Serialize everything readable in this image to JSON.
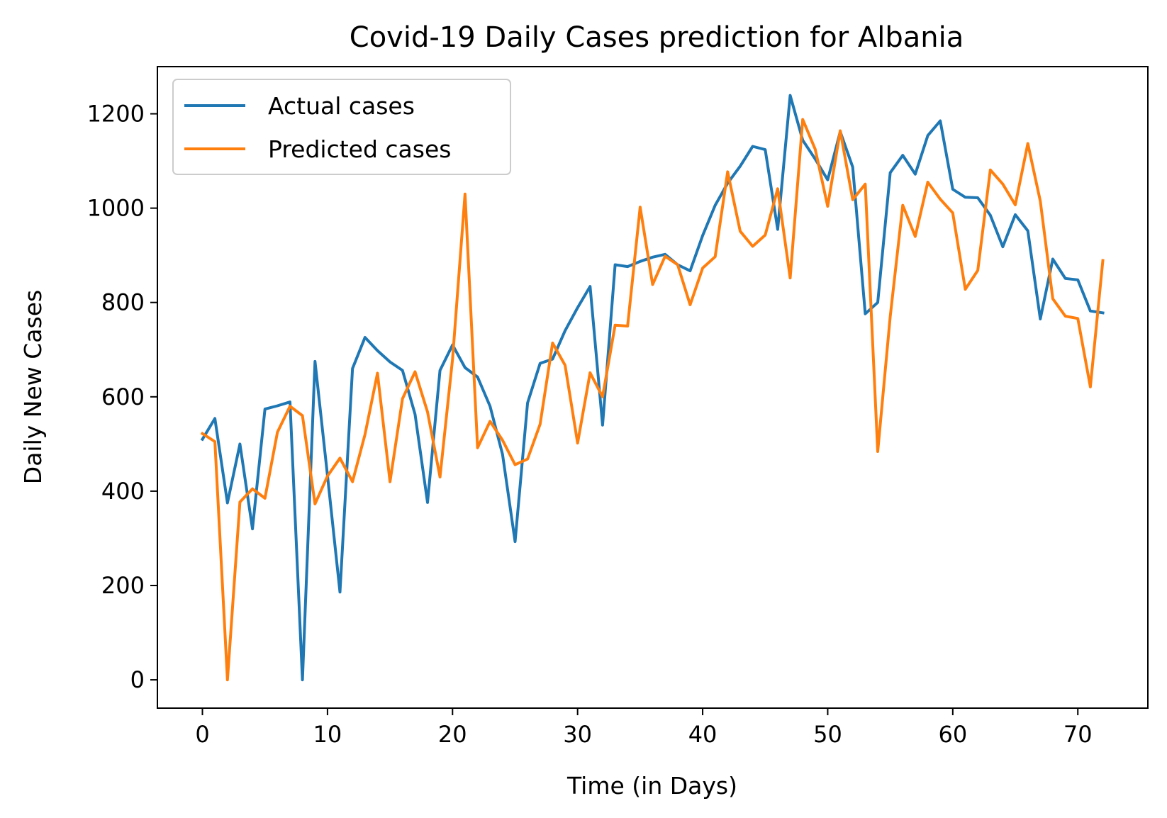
{
  "chart_data": {
    "type": "line",
    "title": "Covid-19 Daily Cases prediction for Albania",
    "xlabel": "Time (in Days)",
    "ylabel": "Daily New Cases",
    "xlim": [
      -3.6,
      75.6
    ],
    "ylim": [
      -60,
      1300
    ],
    "xticks": [
      0,
      10,
      20,
      30,
      40,
      50,
      60,
      70
    ],
    "yticks": [
      0,
      200,
      400,
      600,
      800,
      1000,
      1200
    ],
    "legend": "top-left",
    "grid": false,
    "series": [
      {
        "name": "Actual cases",
        "color": "#1f77b4",
        "values": [
          510,
          554,
          375,
          500,
          320,
          574,
          581,
          589,
          0,
          675,
          433,
          186,
          660,
          726,
          698,
          674,
          656,
          563,
          376,
          656,
          710,
          662,
          642,
          580,
          478,
          293,
          587,
          671,
          680,
          740,
          789,
          834,
          540,
          880,
          876,
          887,
          896,
          902,
          880,
          867,
          942,
          1006,
          1053,
          1089,
          1131,
          1124,
          955,
          1239,
          1144,
          1104,
          1060,
          1162,
          1087,
          776,
          800,
          1075,
          1112,
          1072,
          1154,
          1185,
          1040,
          1023,
          1022,
          985,
          918,
          986,
          952,
          765,
          892,
          851,
          848,
          782,
          778
        ]
      },
      {
        "name": "Predicted cases",
        "color": "#ff7f0e",
        "values": [
          522,
          505,
          0,
          377,
          405,
          385,
          525,
          580,
          560,
          373,
          432,
          470,
          420,
          520,
          650,
          420,
          596,
          653,
          568,
          430,
          680,
          1030,
          492,
          548,
          508,
          456,
          468,
          542,
          714,
          667,
          502,
          651,
          600,
          752,
          750,
          1002,
          838,
          898,
          880,
          795,
          873,
          897,
          1077,
          951,
          919,
          943,
          1041,
          852,
          1188,
          1125,
          1004,
          1164,
          1018,
          1051,
          484,
          770,
          1006,
          940,
          1055,
          1019,
          990,
          828,
          868,
          1081,
          1051,
          1007,
          1137,
          1015,
          808,
          771,
          766,
          621,
          889
        ]
      }
    ]
  }
}
